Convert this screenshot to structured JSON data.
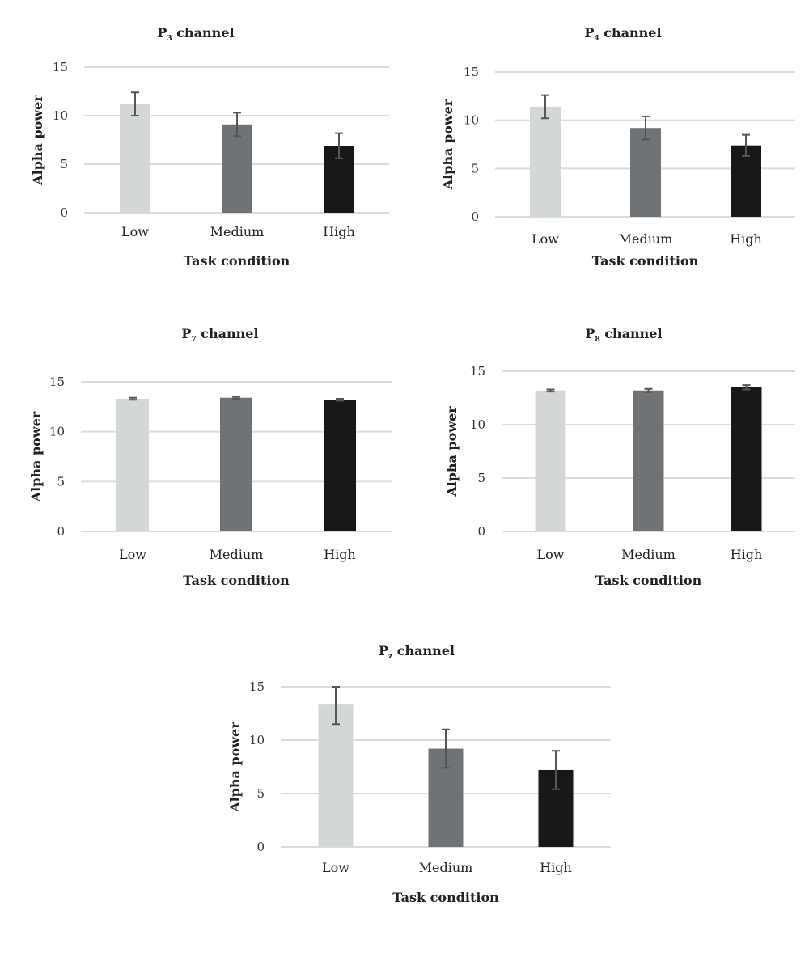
{
  "colors": {
    "low": "#d3d7d8",
    "medium": "#6f7375",
    "high": "#161718",
    "grid": "#dcdcdc",
    "error_bar": "#555555"
  },
  "chart_data": [
    {
      "type": "bar",
      "title": "P3 channel",
      "title_main": "P",
      "title_sub": "3",
      "title_rest": " channel",
      "xlabel": "Task condition",
      "ylabel": "Alpha power",
      "categories": [
        "Low",
        "Medium",
        "High"
      ],
      "values": [
        11.2,
        9.1,
        6.9
      ],
      "errors": [
        1.2,
        1.2,
        1.3
      ],
      "ylim": [
        0,
        15
      ],
      "yticks": [
        0,
        5,
        10,
        15
      ],
      "grid": true
    },
    {
      "type": "bar",
      "title": "P4 channel",
      "title_main": "P",
      "title_sub": "4",
      "title_rest": " channel",
      "xlabel": "Task condition",
      "ylabel": "Alpha power",
      "categories": [
        "Low",
        "Medium",
        "High"
      ],
      "values": [
        11.4,
        9.2,
        7.4
      ],
      "errors": [
        1.2,
        1.2,
        1.1
      ],
      "ylim": [
        0,
        15
      ],
      "yticks": [
        0,
        5,
        10,
        15
      ],
      "grid": true
    },
    {
      "type": "bar",
      "title": "P7 channel",
      "title_main": "P",
      "title_sub": "7",
      "title_rest": " channel",
      "xlabel": "Task condition",
      "ylabel": "Alpha power",
      "categories": [
        "Low",
        "Medium",
        "High"
      ],
      "values": [
        13.3,
        13.4,
        13.2
      ],
      "errors": [
        0.1,
        0.1,
        0.1
      ],
      "ylim": [
        0,
        15
      ],
      "yticks": [
        0,
        5,
        10,
        15
      ],
      "grid": true
    },
    {
      "type": "bar",
      "title": "P8 channel",
      "title_main": "P",
      "title_sub": "8",
      "title_rest": " channel",
      "xlabel": "Task condition",
      "ylabel": "Alpha power",
      "categories": [
        "Low",
        "Medium",
        "High"
      ],
      "values": [
        13.2,
        13.2,
        13.5
      ],
      "errors": [
        0.1,
        0.15,
        0.2
      ],
      "ylim": [
        0,
        15
      ],
      "yticks": [
        0,
        5,
        10,
        15
      ],
      "grid": true
    },
    {
      "type": "bar",
      "title": "Pz channel",
      "title_main": "P",
      "title_sub": "z",
      "title_rest": " channel",
      "xlabel": "Task condition",
      "ylabel": "Alpha power",
      "categories": [
        "Low",
        "Medium",
        "High"
      ],
      "values": [
        13.4,
        9.2,
        7.2
      ],
      "errors": [
        1.9,
        1.8,
        1.8
      ],
      "ylim": [
        0,
        15
      ],
      "yticks": [
        0,
        5,
        10,
        15
      ],
      "grid": true
    }
  ]
}
